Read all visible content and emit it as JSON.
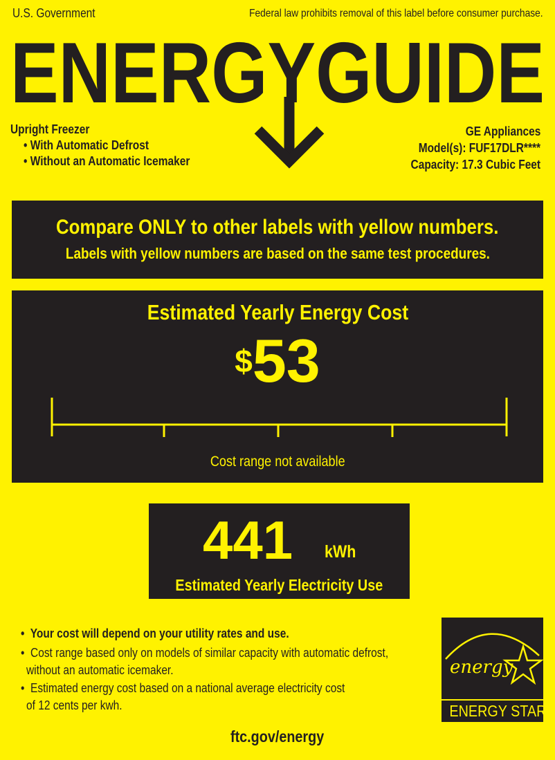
{
  "header": {
    "issuer": "U.S. Government",
    "notice": "Federal law prohibits removal of this label before consumer purchase.",
    "title": "ENERGYGUIDE"
  },
  "product": {
    "type": "Upright Freezer",
    "features": [
      "With Automatic Defrost",
      "Without an Automatic Icemaker"
    ],
    "manufacturer": "GE Appliances",
    "model": "Model(s): FUF17DLR****",
    "capacity": "Capacity: 17.3 Cubic Feet"
  },
  "compare": {
    "line1": "Compare ONLY to other labels with yellow numbers.",
    "line2": "Labels with yellow numbers are based on the same test procedures."
  },
  "cost": {
    "heading": "Estimated Yearly Energy Cost",
    "currency": "$",
    "amount": "53",
    "range_note": "Cost range not available"
  },
  "usage": {
    "value": "441",
    "unit": "kWh",
    "label": "Estimated Yearly Electricity Use"
  },
  "notes": [
    {
      "line1": "Your cost will depend on your utility rates and use.",
      "line2": ""
    },
    {
      "line1": "Cost range based only on models of similar capacity with automatic defrost,",
      "line2": "without an automatic icemaker."
    },
    {
      "line1": "Estimated energy cost based on a national average electricity cost",
      "line2": "of 12 cents per kwh."
    }
  ],
  "energy_star": {
    "script": "energy",
    "label": "ENERGY STAR"
  },
  "footer": {
    "link": "ftc.gov/energy"
  },
  "colors": {
    "background": "#FFF200",
    "dark": "#231F20"
  }
}
